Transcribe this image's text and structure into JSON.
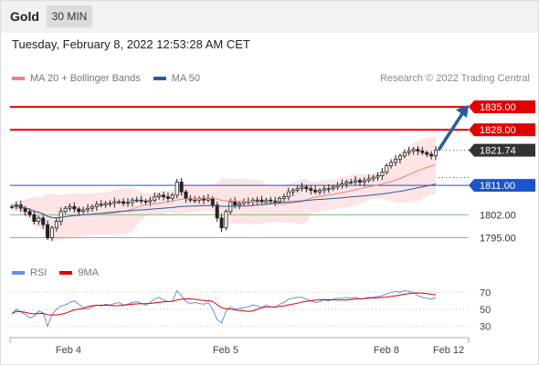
{
  "header": {
    "symbol": "Gold",
    "timeframe": "30 MIN"
  },
  "timestamp": "Tuesday, February 8, 2022 12:53:28 AM CET",
  "legend": [
    {
      "label": "MA 20 + Bollinger Bands",
      "color": "#f08080"
    },
    {
      "label": "MA 50",
      "color": "#2c5aa0"
    }
  ],
  "credit": "Research © 2022 Trading Central",
  "indicator_legend": [
    {
      "label": "RSI",
      "color": "#6a8fe0"
    },
    {
      "label": "9MA",
      "color": "#e00000"
    }
  ],
  "colors": {
    "resistance": "#e00000",
    "support_blue": "#1a56c8",
    "support_green": "#7fbf7f",
    "candle": "#222222",
    "band": "#fde0e0",
    "ma20": "#f08080",
    "ma50": "#2c5aa0",
    "arrow": "#2c5aa0",
    "last_price": "#333333"
  },
  "chart_data": [
    {
      "type": "line",
      "title": "Gold 30 MIN",
      "ylim": [
        1789,
        1842
      ],
      "x_ticks": [
        "Feb 4",
        "Feb 5",
        "Feb 8",
        "Feb 12"
      ],
      "levels": [
        {
          "value": 1835.0,
          "label": "1835.00",
          "kind": "resistance"
        },
        {
          "value": 1828.0,
          "label": "1828.00",
          "kind": "resistance"
        },
        {
          "value": 1821.74,
          "label": "1821.74",
          "kind": "last"
        },
        {
          "value": 1811.0,
          "label": "1811.00",
          "kind": "support-strong"
        },
        {
          "value": 1802.0,
          "label": "1802.00",
          "kind": "support"
        },
        {
          "value": 1795.0,
          "label": "1795.00",
          "kind": "support"
        }
      ],
      "close_path": [
        1804.5,
        1805.0,
        1804.0,
        1803.0,
        1802.0,
        1800.0,
        1801.0,
        1799.0,
        1795.0,
        1798.0,
        1800.0,
        1803.0,
        1804.0,
        1804.5,
        1803.8,
        1803.0,
        1803.5,
        1804.0,
        1804.5,
        1805.2,
        1805.0,
        1805.5,
        1805.5,
        1806.0,
        1806.0,
        1805.5,
        1805.8,
        1806.5,
        1806.5,
        1806.2,
        1806.0,
        1806.5,
        1807.5,
        1808.0,
        1807.5,
        1807.0,
        1808.0,
        1812.0,
        1809.0,
        1807.0,
        1806.5,
        1806.5,
        1807.0,
        1806.5,
        1807.0,
        1805.0,
        1801.0,
        1798.0,
        1803.0,
        1806.0,
        1805.0,
        1805.5,
        1806.0,
        1806.0,
        1806.5,
        1806.5,
        1806.0,
        1806.5,
        1806.2,
        1806.0,
        1807.0,
        1807.5,
        1809.0,
        1809.5,
        1810.0,
        1810.5,
        1810.0,
        1809.5,
        1809.0,
        1809.5,
        1810.0,
        1810.0,
        1810.5,
        1811.0,
        1811.5,
        1812.0,
        1812.0,
        1812.5,
        1812.0,
        1812.5,
        1813.0,
        1813.5,
        1814.0,
        1815.0,
        1817.0,
        1818.0,
        1819.0,
        1820.0,
        1821.0,
        1821.5,
        1822.0,
        1821.5,
        1821.0,
        1820.5,
        1820.0,
        1821.74
      ],
      "series": [
        {
          "name": "MA 20 + Bollinger Bands",
          "color": "#f08080"
        },
        {
          "name": "MA 50",
          "color": "#2c5aa0"
        }
      ],
      "projection": {
        "from": 1821.74,
        "to": 1835.0
      }
    },
    {
      "type": "line",
      "title": "RSI",
      "ylim": [
        20,
        80
      ],
      "y_ticks": [
        70,
        50,
        30
      ],
      "rsi": [
        45,
        50,
        47,
        44,
        40,
        42,
        48,
        46,
        30,
        44,
        50,
        54,
        55,
        58,
        60,
        56,
        52,
        50,
        53,
        55,
        54,
        56,
        55,
        57,
        58,
        55,
        56,
        58,
        59,
        57,
        55,
        58,
        62,
        64,
        61,
        59,
        60,
        72,
        66,
        59,
        57,
        58,
        57,
        56,
        58,
        50,
        38,
        34,
        48,
        53,
        50,
        51,
        52,
        53,
        55,
        54,
        52,
        55,
        53,
        52,
        56,
        58,
        62,
        63,
        64,
        64,
        62,
        60,
        58,
        59,
        61,
        60,
        62,
        63,
        63,
        64,
        63,
        64,
        62,
        63,
        64,
        64,
        65,
        66,
        68,
        70,
        71,
        70,
        72,
        71,
        70,
        66,
        64,
        63,
        62,
        64
      ],
      "series": [
        {
          "name": "RSI",
          "color": "#6a8fe0"
        },
        {
          "name": "9MA",
          "color": "#e00000"
        }
      ]
    }
  ]
}
